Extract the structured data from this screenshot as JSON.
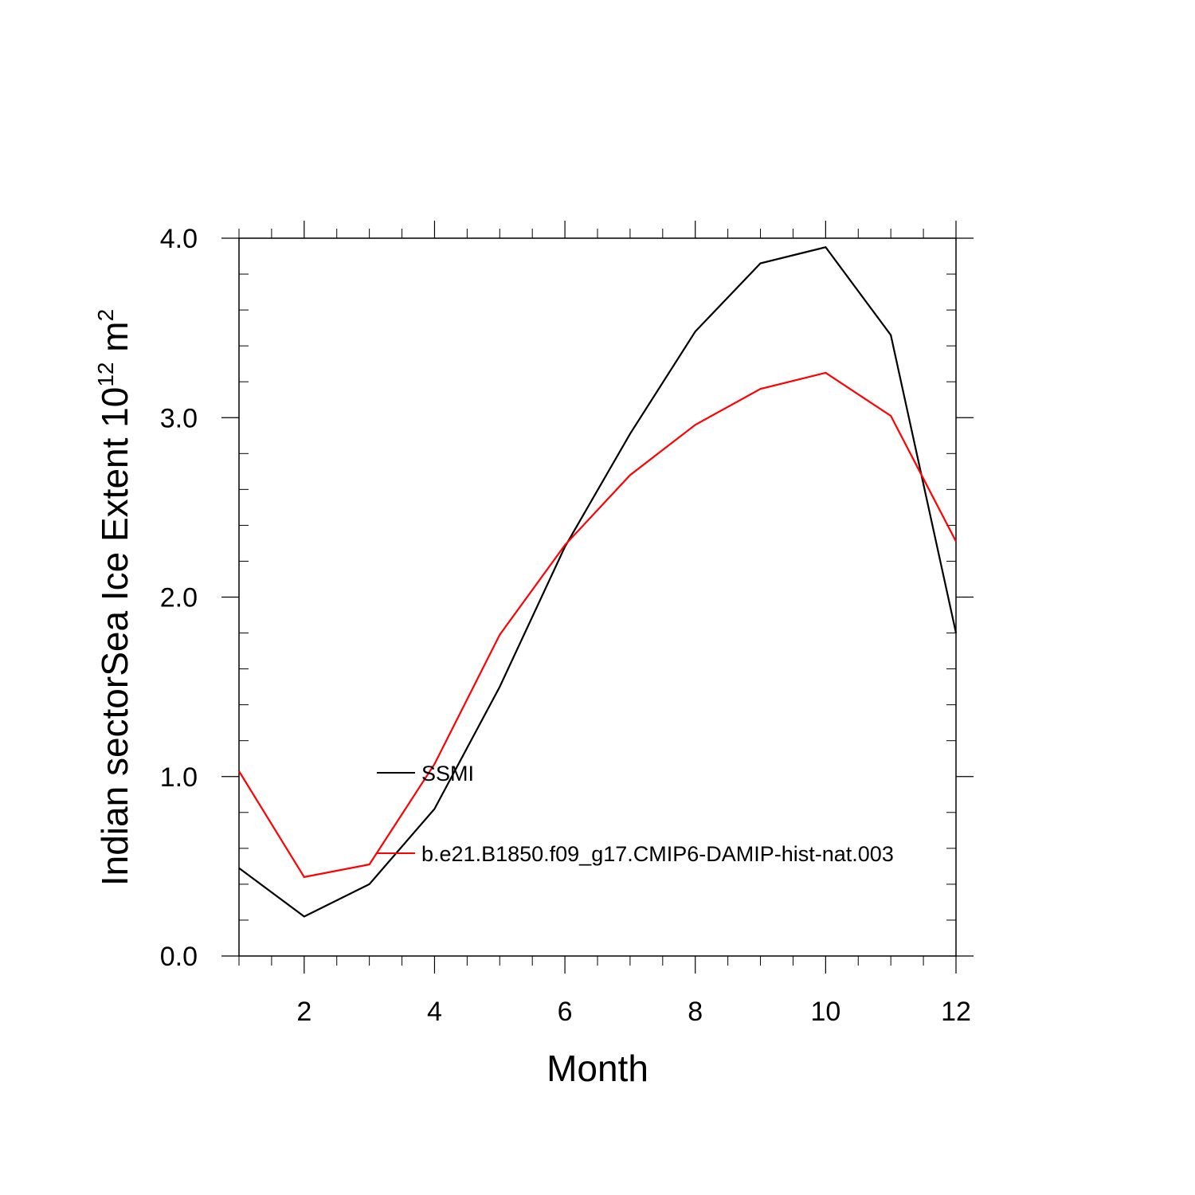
{
  "chart_data": {
    "type": "line",
    "xlabel": "Month",
    "ylabel_main": "Indian sectorSea Ice Extent 10",
    "ylabel_exp1": "12",
    "ylabel_unit": " m",
    "ylabel_exp2": "2",
    "xlim": [
      1,
      12
    ],
    "ylim": [
      0.0,
      4.0
    ],
    "x_ticks": [
      2,
      4,
      6,
      8,
      10,
      12
    ],
    "x_tick_labels": [
      "2",
      "4",
      "6",
      "8",
      "10",
      "12"
    ],
    "y_ticks": [
      0.0,
      1.0,
      2.0,
      3.0,
      4.0
    ],
    "y_tick_labels": [
      "0.0",
      "1.0",
      "2.0",
      "3.0",
      "4.0"
    ],
    "x": [
      1,
      2,
      3,
      4,
      5,
      6,
      7,
      8,
      9,
      10,
      11,
      12
    ],
    "series": [
      {
        "name": "SSMI",
        "color": "#000000",
        "values": [
          0.49,
          0.22,
          0.4,
          0.82,
          1.5,
          2.28,
          2.91,
          3.48,
          3.86,
          3.95,
          3.46,
          1.8
        ]
      },
      {
        "name": "b.e21.B1850.f09_g17.CMIP6-DAMIP-hist-nat.003",
        "color": "#ff0000",
        "values": [
          1.03,
          0.44,
          0.51,
          1.07,
          1.79,
          2.29,
          2.68,
          2.96,
          3.16,
          3.25,
          3.01,
          2.31
        ]
      }
    ],
    "legend_position": "center-left, inside plot"
  }
}
